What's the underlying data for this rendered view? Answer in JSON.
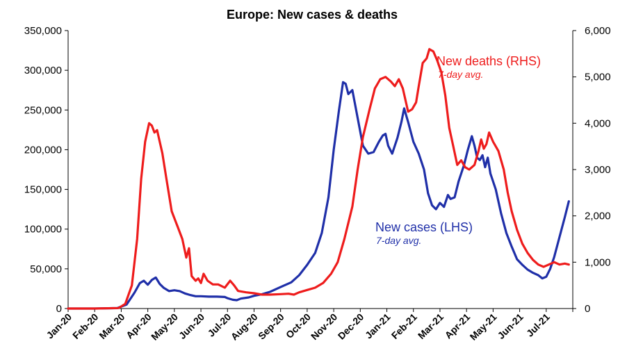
{
  "chart_data": {
    "type": "line",
    "title": "Europe: New cases & deaths",
    "x_categories": [
      "Jan-20",
      "Feb-20",
      "Mar-20",
      "Apr-20",
      "May-20",
      "Jun-20",
      "Jul-20",
      "Aug-20",
      "Sep-20",
      "Oct-20",
      "Nov-20",
      "Dec-20",
      "Jan-21",
      "Feb-21",
      "Mar-21",
      "Apr-21",
      "May-21",
      "Jun-21",
      "Jul-21"
    ],
    "y_left": {
      "min": 0,
      "max": 350000,
      "ticks": [
        "0",
        "50,000",
        "100,000",
        "150,000",
        "200,000",
        "250,000",
        "300,000",
        "350,000"
      ]
    },
    "y_right": {
      "min": 0,
      "max": 6000,
      "ticks": [
        "0",
        "1,000",
        "2,000",
        "3,000",
        "4,000",
        "5,000",
        "6,000"
      ]
    },
    "grid": false,
    "series": [
      {
        "name": "New cases (LHS)",
        "subtitle": "7-day avg.",
        "axis": "left",
        "color": "#1f2fa8",
        "points": [
          [
            0,
            0
          ],
          [
            1,
            0
          ],
          [
            1.85,
            500
          ],
          [
            2.2,
            5000
          ],
          [
            2.5,
            20000
          ],
          [
            2.7,
            32000
          ],
          [
            2.85,
            35000
          ],
          [
            3.0,
            30000
          ],
          [
            3.15,
            36000
          ],
          [
            3.3,
            39000
          ],
          [
            3.45,
            31000
          ],
          [
            3.6,
            26000
          ],
          [
            3.8,
            22000
          ],
          [
            4.0,
            23000
          ],
          [
            4.2,
            22000
          ],
          [
            4.4,
            19000
          ],
          [
            4.6,
            17000
          ],
          [
            4.8,
            15500
          ],
          [
            5.0,
            15500
          ],
          [
            5.3,
            15000
          ],
          [
            5.6,
            15000
          ],
          [
            5.9,
            14500
          ],
          [
            6.0,
            13000
          ],
          [
            6.2,
            11000
          ],
          [
            6.35,
            10500
          ],
          [
            6.5,
            12500
          ],
          [
            6.8,
            14000
          ],
          [
            7.0,
            16000
          ],
          [
            7.3,
            18000
          ],
          [
            7.6,
            21000
          ],
          [
            8.0,
            27000
          ],
          [
            8.4,
            33000
          ],
          [
            8.7,
            42000
          ],
          [
            9.0,
            55000
          ],
          [
            9.3,
            70000
          ],
          [
            9.55,
            95000
          ],
          [
            9.8,
            140000
          ],
          [
            10.0,
            200000
          ],
          [
            10.2,
            250000
          ],
          [
            10.35,
            285000
          ],
          [
            10.45,
            283000
          ],
          [
            10.55,
            270000
          ],
          [
            10.7,
            275000
          ],
          [
            10.9,
            240000
          ],
          [
            11.1,
            205000
          ],
          [
            11.3,
            195000
          ],
          [
            11.5,
            197000
          ],
          [
            11.7,
            210000
          ],
          [
            11.85,
            218000
          ],
          [
            11.95,
            220000
          ],
          [
            12.05,
            205000
          ],
          [
            12.2,
            195000
          ],
          [
            12.4,
            215000
          ],
          [
            12.55,
            235000
          ],
          [
            12.65,
            252000
          ],
          [
            12.8,
            235000
          ],
          [
            13.0,
            210000
          ],
          [
            13.2,
            195000
          ],
          [
            13.4,
            175000
          ],
          [
            13.55,
            145000
          ],
          [
            13.7,
            130000
          ],
          [
            13.85,
            125000
          ],
          [
            14.0,
            133000
          ],
          [
            14.15,
            128000
          ],
          [
            14.3,
            143000
          ],
          [
            14.4,
            138000
          ],
          [
            14.55,
            140000
          ],
          [
            14.7,
            160000
          ],
          [
            14.9,
            180000
          ],
          [
            15.05,
            200000
          ],
          [
            15.2,
            217000
          ],
          [
            15.3,
            205000
          ],
          [
            15.4,
            190000
          ],
          [
            15.5,
            187000
          ],
          [
            15.6,
            193000
          ],
          [
            15.7,
            178000
          ],
          [
            15.8,
            190000
          ],
          [
            15.9,
            170000
          ],
          [
            16.1,
            150000
          ],
          [
            16.3,
            120000
          ],
          [
            16.5,
            95000
          ],
          [
            16.7,
            78000
          ],
          [
            16.9,
            62000
          ],
          [
            17.1,
            55000
          ],
          [
            17.3,
            49000
          ],
          [
            17.5,
            45000
          ],
          [
            17.7,
            42000
          ],
          [
            17.85,
            38000
          ],
          [
            18.0,
            40000
          ],
          [
            18.15,
            50000
          ],
          [
            18.3,
            65000
          ],
          [
            18.5,
            90000
          ],
          [
            18.7,
            115000
          ],
          [
            18.85,
            135000
          ]
        ]
      },
      {
        "name": "New deaths (RHS)",
        "subtitle": "7-day avg.",
        "axis": "right",
        "color": "#ee1c1c",
        "points": [
          [
            0,
            0
          ],
          [
            1,
            0
          ],
          [
            1.9,
            10
          ],
          [
            2.15,
            100
          ],
          [
            2.4,
            500
          ],
          [
            2.6,
            1500
          ],
          [
            2.75,
            2800
          ],
          [
            2.9,
            3600
          ],
          [
            3.05,
            4000
          ],
          [
            3.15,
            3950
          ],
          [
            3.25,
            3800
          ],
          [
            3.35,
            3850
          ],
          [
            3.45,
            3600
          ],
          [
            3.55,
            3350
          ],
          [
            3.7,
            2800
          ],
          [
            3.9,
            2100
          ],
          [
            4.1,
            1800
          ],
          [
            4.3,
            1500
          ],
          [
            4.45,
            1100
          ],
          [
            4.55,
            1300
          ],
          [
            4.65,
            700
          ],
          [
            4.8,
            600
          ],
          [
            4.9,
            650
          ],
          [
            5.0,
            550
          ],
          [
            5.1,
            750
          ],
          [
            5.25,
            600
          ],
          [
            5.45,
            520
          ],
          [
            5.65,
            520
          ],
          [
            5.9,
            450
          ],
          [
            6.1,
            600
          ],
          [
            6.25,
            500
          ],
          [
            6.4,
            380
          ],
          [
            6.7,
            350
          ],
          [
            7.0,
            330
          ],
          [
            7.3,
            300
          ],
          [
            7.6,
            300
          ],
          [
            8.0,
            310
          ],
          [
            8.3,
            320
          ],
          [
            8.5,
            300
          ],
          [
            8.7,
            350
          ],
          [
            9.0,
            400
          ],
          [
            9.3,
            450
          ],
          [
            9.6,
            550
          ],
          [
            9.9,
            750
          ],
          [
            10.15,
            1000
          ],
          [
            10.4,
            1500
          ],
          [
            10.7,
            2200
          ],
          [
            10.9,
            3000
          ],
          [
            11.1,
            3700
          ],
          [
            11.35,
            4300
          ],
          [
            11.55,
            4750
          ],
          [
            11.75,
            4950
          ],
          [
            11.95,
            5000
          ],
          [
            12.15,
            4900
          ],
          [
            12.3,
            4800
          ],
          [
            12.45,
            4950
          ],
          [
            12.6,
            4750
          ],
          [
            12.8,
            4250
          ],
          [
            12.95,
            4300
          ],
          [
            13.1,
            4450
          ],
          [
            13.2,
            4800
          ],
          [
            13.35,
            5300
          ],
          [
            13.5,
            5400
          ],
          [
            13.6,
            5600
          ],
          [
            13.75,
            5550
          ],
          [
            13.9,
            5350
          ],
          [
            14.05,
            5100
          ],
          [
            14.2,
            4600
          ],
          [
            14.35,
            3900
          ],
          [
            14.5,
            3500
          ],
          [
            14.65,
            3100
          ],
          [
            14.8,
            3200
          ],
          [
            14.95,
            3050
          ],
          [
            15.1,
            3000
          ],
          [
            15.3,
            3100
          ],
          [
            15.45,
            3400
          ],
          [
            15.55,
            3650
          ],
          [
            15.65,
            3450
          ],
          [
            15.75,
            3550
          ],
          [
            15.85,
            3800
          ],
          [
            16.0,
            3600
          ],
          [
            16.2,
            3400
          ],
          [
            16.4,
            3000
          ],
          [
            16.55,
            2500
          ],
          [
            16.7,
            2100
          ],
          [
            16.9,
            1700
          ],
          [
            17.1,
            1400
          ],
          [
            17.3,
            1200
          ],
          [
            17.5,
            1050
          ],
          [
            17.7,
            950
          ],
          [
            17.9,
            900
          ],
          [
            18.1,
            950
          ],
          [
            18.3,
            1000
          ],
          [
            18.5,
            950
          ],
          [
            18.7,
            970
          ],
          [
            18.85,
            950
          ]
        ]
      }
    ]
  }
}
